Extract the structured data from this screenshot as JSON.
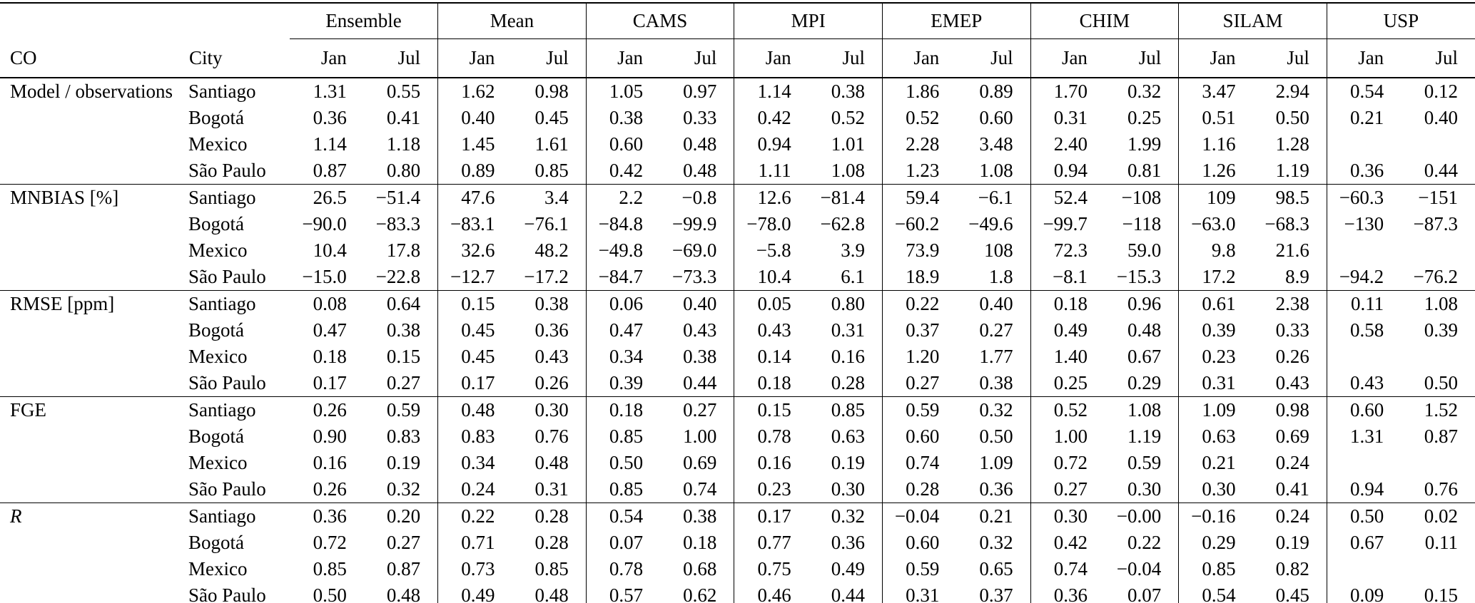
{
  "table": {
    "corner_label": "CO",
    "city_label": "City",
    "groups": [
      "Ensemble",
      "Mean",
      "CAMS",
      "MPI",
      "EMEP",
      "CHIM",
      "SILAM",
      "USP"
    ],
    "sub_headers": [
      "Jan",
      "Jul"
    ],
    "blocks": [
      {
        "metric": "Model / observations",
        "italic": false,
        "rows": [
          {
            "city": "Santiago",
            "values": [
              "1.31",
              "0.55",
              "1.62",
              "0.98",
              "1.05",
              "0.97",
              "1.14",
              "0.38",
              "1.86",
              "0.89",
              "1.70",
              "0.32",
              "3.47",
              "2.94",
              "0.54",
              "0.12"
            ]
          },
          {
            "city": "Bogotá",
            "values": [
              "0.36",
              "0.41",
              "0.40",
              "0.45",
              "0.38",
              "0.33",
              "0.42",
              "0.52",
              "0.52",
              "0.60",
              "0.31",
              "0.25",
              "0.51",
              "0.50",
              "0.21",
              "0.40"
            ]
          },
          {
            "city": "Mexico",
            "values": [
              "1.14",
              "1.18",
              "1.45",
              "1.61",
              "0.60",
              "0.48",
              "0.94",
              "1.01",
              "2.28",
              "3.48",
              "2.40",
              "1.99",
              "1.16",
              "1.28",
              "",
              ""
            ]
          },
          {
            "city": "São Paulo",
            "values": [
              "0.87",
              "0.80",
              "0.89",
              "0.85",
              "0.42",
              "0.48",
              "1.11",
              "1.08",
              "1.23",
              "1.08",
              "0.94",
              "0.81",
              "1.26",
              "1.19",
              "0.36",
              "0.44"
            ]
          }
        ]
      },
      {
        "metric": "MNBIAS [%]",
        "italic": false,
        "rows": [
          {
            "city": "Santiago",
            "values": [
              "26.5",
              "−51.4",
              "47.6",
              "3.4",
              "2.2",
              "−0.8",
              "12.6",
              "−81.4",
              "59.4",
              "−6.1",
              "52.4",
              "−108",
              "109",
              "98.5",
              "−60.3",
              "−151"
            ]
          },
          {
            "city": "Bogotá",
            "values": [
              "−90.0",
              "−83.3",
              "−83.1",
              "−76.1",
              "−84.8",
              "−99.9",
              "−78.0",
              "−62.8",
              "−60.2",
              "−49.6",
              "−99.7",
              "−118",
              "−63.0",
              "−68.3",
              "−130",
              "−87.3"
            ]
          },
          {
            "city": "Mexico",
            "values": [
              "10.4",
              "17.8",
              "32.6",
              "48.2",
              "−49.8",
              "−69.0",
              "−5.8",
              "3.9",
              "73.9",
              "108",
              "72.3",
              "59.0",
              "9.8",
              "21.6",
              "",
              ""
            ]
          },
          {
            "city": "São Paulo",
            "values": [
              "−15.0",
              "−22.8",
              "−12.7",
              "−17.2",
              "−84.7",
              "−73.3",
              "10.4",
              "6.1",
              "18.9",
              "1.8",
              "−8.1",
              "−15.3",
              "17.2",
              "8.9",
              "−94.2",
              "−76.2"
            ]
          }
        ]
      },
      {
        "metric": "RMSE [ppm]",
        "italic": false,
        "rows": [
          {
            "city": "Santiago",
            "values": [
              "0.08",
              "0.64",
              "0.15",
              "0.38",
              "0.06",
              "0.40",
              "0.05",
              "0.80",
              "0.22",
              "0.40",
              "0.18",
              "0.96",
              "0.61",
              "2.38",
              "0.11",
              "1.08"
            ]
          },
          {
            "city": "Bogotá",
            "values": [
              "0.47",
              "0.38",
              "0.45",
              "0.36",
              "0.47",
              "0.43",
              "0.43",
              "0.31",
              "0.37",
              "0.27",
              "0.49",
              "0.48",
              "0.39",
              "0.33",
              "0.58",
              "0.39"
            ]
          },
          {
            "city": "Mexico",
            "values": [
              "0.18",
              "0.15",
              "0.45",
              "0.43",
              "0.34",
              "0.38",
              "0.14",
              "0.16",
              "1.20",
              "1.77",
              "1.40",
              "0.67",
              "0.23",
              "0.26",
              "",
              ""
            ]
          },
          {
            "city": "São Paulo",
            "values": [
              "0.17",
              "0.27",
              "0.17",
              "0.26",
              "0.39",
              "0.44",
              "0.18",
              "0.28",
              "0.27",
              "0.38",
              "0.25",
              "0.29",
              "0.31",
              "0.43",
              "0.43",
              "0.50"
            ]
          }
        ]
      },
      {
        "metric": "FGE",
        "italic": false,
        "rows": [
          {
            "city": "Santiago",
            "values": [
              "0.26",
              "0.59",
              "0.48",
              "0.30",
              "0.18",
              "0.27",
              "0.15",
              "0.85",
              "0.59",
              "0.32",
              "0.52",
              "1.08",
              "1.09",
              "0.98",
              "0.60",
              "1.52"
            ]
          },
          {
            "city": "Bogotá",
            "values": [
              "0.90",
              "0.83",
              "0.83",
              "0.76",
              "0.85",
              "1.00",
              "0.78",
              "0.63",
              "0.60",
              "0.50",
              "1.00",
              "1.19",
              "0.63",
              "0.69",
              "1.31",
              "0.87"
            ]
          },
          {
            "city": "Mexico",
            "values": [
              "0.16",
              "0.19",
              "0.34",
              "0.48",
              "0.50",
              "0.69",
              "0.16",
              "0.19",
              "0.74",
              "1.09",
              "0.72",
              "0.59",
              "0.21",
              "0.24",
              "",
              ""
            ]
          },
          {
            "city": "São Paulo",
            "values": [
              "0.26",
              "0.32",
              "0.24",
              "0.31",
              "0.85",
              "0.74",
              "0.23",
              "0.30",
              "0.28",
              "0.36",
              "0.27",
              "0.30",
              "0.30",
              "0.41",
              "0.94",
              "0.76"
            ]
          }
        ]
      },
      {
        "metric": "R",
        "italic": true,
        "rows": [
          {
            "city": "Santiago",
            "values": [
              "0.36",
              "0.20",
              "0.22",
              "0.28",
              "0.54",
              "0.38",
              "0.17",
              "0.32",
              "−0.04",
              "0.21",
              "0.30",
              "−0.00",
              "−0.16",
              "0.24",
              "0.50",
              "0.02"
            ]
          },
          {
            "city": "Bogotá",
            "values": [
              "0.72",
              "0.27",
              "0.71",
              "0.28",
              "0.07",
              "0.18",
              "0.77",
              "0.36",
              "0.60",
              "0.32",
              "0.42",
              "0.22",
              "0.29",
              "0.19",
              "0.67",
              "0.11"
            ]
          },
          {
            "city": "Mexico",
            "values": [
              "0.85",
              "0.87",
              "0.73",
              "0.85",
              "0.78",
              "0.68",
              "0.75",
              "0.49",
              "0.59",
              "0.65",
              "0.74",
              "−0.04",
              "0.85",
              "0.82",
              "",
              ""
            ]
          },
          {
            "city": "São Paulo",
            "values": [
              "0.50",
              "0.48",
              "0.49",
              "0.48",
              "0.57",
              "0.62",
              "0.46",
              "0.44",
              "0.31",
              "0.37",
              "0.36",
              "0.07",
              "0.54",
              "0.45",
              "0.09",
              "0.15"
            ]
          }
        ]
      }
    ]
  }
}
